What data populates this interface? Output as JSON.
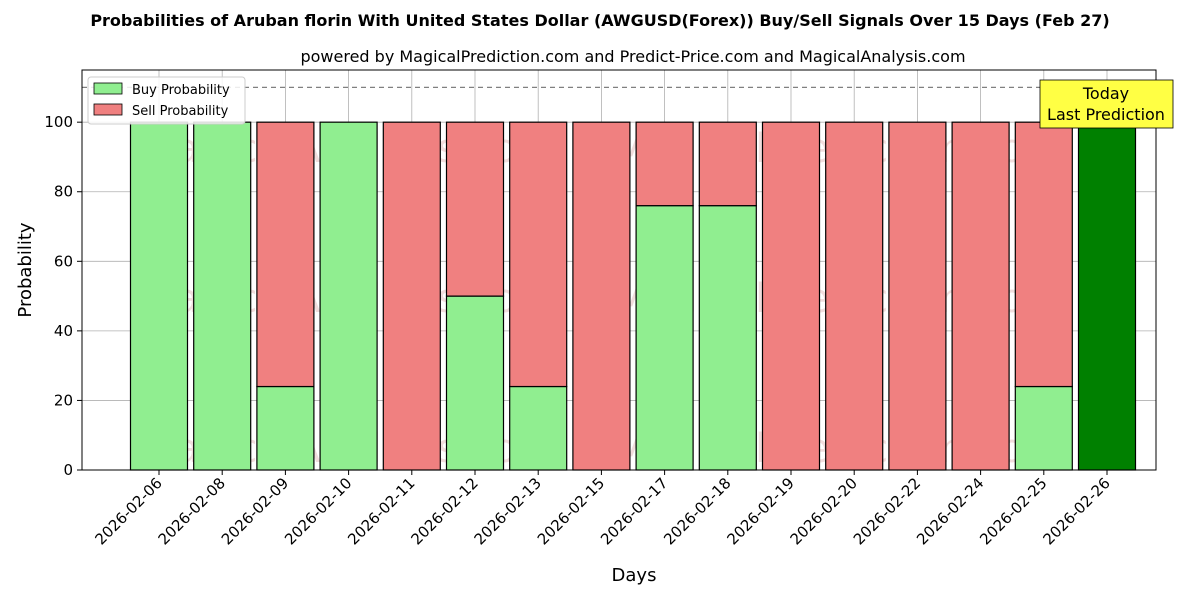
{
  "chart_data": {
    "type": "bar",
    "stacked": true,
    "title": "Probabilities of Aruban florin With United States Dollar (AWGUSD(Forex)) Buy/Sell Signals Over 15 Days (Feb 27)",
    "subtitle": "powered by MagicalPrediction.com and Predict-Price.com and MagicalAnalysis.com",
    "xlabel": "Days",
    "ylabel": "Probability",
    "ylim": [
      0,
      115
    ],
    "yticks": [
      0,
      20,
      40,
      60,
      80,
      100
    ],
    "grid": true,
    "legend_position": "top-left",
    "reference_line": 110,
    "categories": [
      "2026-02-06",
      "2026-02-08",
      "2026-02-09",
      "2026-02-10",
      "2026-02-11",
      "2026-02-12",
      "2026-02-13",
      "2026-02-15",
      "2026-02-17",
      "2026-02-18",
      "2026-02-19",
      "2026-02-20",
      "2026-02-22",
      "2026-02-24",
      "2026-02-25",
      "2026-02-26"
    ],
    "series": [
      {
        "name": "Buy Probability",
        "color": "#90ee90",
        "values": [
          100,
          100,
          24,
          100,
          0,
          50,
          24,
          0,
          76,
          76,
          0,
          0,
          0,
          0,
          24,
          100
        ]
      },
      {
        "name": "Sell Probability",
        "color": "#f08080",
        "values": [
          0,
          0,
          76,
          0,
          100,
          50,
          76,
          100,
          24,
          24,
          100,
          100,
          100,
          100,
          76,
          0
        ]
      }
    ],
    "highlight": {
      "index": 15,
      "color": "#008000"
    },
    "annotation": {
      "line1": "Today",
      "line2": "Last Prediction",
      "fill": "#ffff44"
    },
    "watermarks": [
      "MagicalAnalysis.com",
      "MagicalPrediction.com"
    ]
  }
}
